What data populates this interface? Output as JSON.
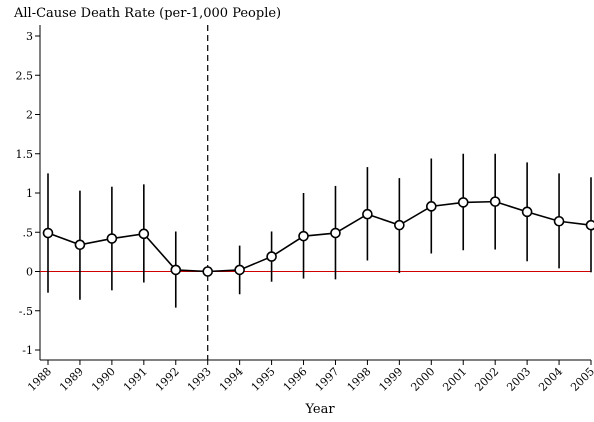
{
  "chart_data": {
    "type": "line",
    "title": "All-Cause Death Rate (per-1,000 People)",
    "xlabel": "Year",
    "ylabel": "",
    "ylim": [
      -1,
      3
    ],
    "yticks": [
      {
        "value": 3,
        "label": "3"
      },
      {
        "value": 2.5,
        "label": "2.5"
      },
      {
        "value": 2,
        "label": "2"
      },
      {
        "value": 1.5,
        "label": "1.5"
      },
      {
        "value": 1,
        "label": "1"
      },
      {
        "value": 0.5,
        "label": ".5"
      },
      {
        "value": 0,
        "label": "0"
      },
      {
        "value": -0.5,
        "label": "-.5"
      },
      {
        "value": -1,
        "label": "-1"
      }
    ],
    "x": [
      "1988",
      "1989",
      "1990",
      "1991",
      "1992",
      "1993",
      "1994",
      "1995",
      "1996",
      "1997",
      "1998",
      "1999",
      "2000",
      "2001",
      "2002",
      "2003",
      "2004",
      "2005"
    ],
    "series": [
      {
        "values": [
          0.49,
          0.34,
          0.42,
          0.48,
          0.02,
          0.0,
          0.02,
          0.19,
          0.45,
          0.49,
          0.73,
          0.59,
          0.83,
          0.88,
          0.89,
          0.76,
          0.64,
          0.59
        ],
        "ci_low": [
          -0.27,
          -0.36,
          -0.24,
          -0.14,
          -0.46,
          0.0,
          -0.29,
          -0.13,
          -0.09,
          -0.1,
          0.14,
          -0.02,
          0.23,
          0.27,
          0.28,
          0.13,
          0.04,
          -0.01
        ],
        "ci_high": [
          1.25,
          1.03,
          1.08,
          1.11,
          0.51,
          0.0,
          0.33,
          0.51,
          1.0,
          1.09,
          1.33,
          1.19,
          1.44,
          1.5,
          1.5,
          1.39,
          1.25,
          1.2
        ]
      }
    ],
    "reference_line_y": 0,
    "reference_line_color": "#d00000",
    "event_line_x": "1993",
    "grid": false,
    "legend": "none"
  }
}
